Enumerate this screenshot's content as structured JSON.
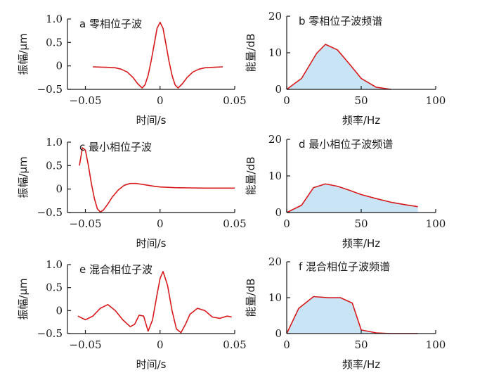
{
  "chart_data": [
    {
      "type": "line",
      "title": "a 零相位子波",
      "xlabel": "时间/s",
      "ylabel": "振幅/μm",
      "xlim": [
        -0.062,
        0.05
      ],
      "ylim": [
        -0.5,
        1.0
      ],
      "xticks": [
        -0.05,
        0,
        0.05
      ],
      "xtick_labels": [
        "−0.05",
        "0",
        "0.05"
      ],
      "yticks": [
        1.0,
        0.5,
        0,
        -0.5
      ],
      "ytick_labels": [
        "1.0",
        "0.5",
        "0",
        "−0.5"
      ],
      "series": [
        {
          "color": "#d7191c",
          "x": [
            -0.045,
            -0.035,
            -0.03,
            -0.026,
            -0.022,
            -0.018,
            -0.015,
            -0.012,
            -0.01,
            -0.008,
            -0.006,
            -0.004,
            -0.002,
            0,
            0.002,
            0.004,
            0.006,
            0.008,
            0.01,
            0.012,
            0.015,
            0.018,
            0.022,
            0.026,
            0.03,
            0.035,
            0.042
          ],
          "y": [
            -0.02,
            -0.03,
            -0.04,
            -0.07,
            -0.13,
            -0.25,
            -0.38,
            -0.47,
            -0.4,
            -0.2,
            0.1,
            0.45,
            0.8,
            0.93,
            0.8,
            0.45,
            0.1,
            -0.2,
            -0.4,
            -0.47,
            -0.38,
            -0.25,
            -0.13,
            -0.07,
            -0.04,
            -0.03,
            -0.02
          ]
        }
      ]
    },
    {
      "type": "area",
      "title": "b 零相位子波频谱",
      "xlabel": "频率/Hz",
      "ylabel": "能量/dB",
      "xlim": [
        0,
        100
      ],
      "ylim": [
        0,
        20
      ],
      "xticks": [
        0,
        50,
        100
      ],
      "xtick_labels": [
        "0",
        "50",
        "100"
      ],
      "yticks": [
        0,
        10,
        20
      ],
      "ytick_labels": [
        "0",
        "10",
        "20"
      ],
      "fill_color": "#c9e4f5",
      "series": [
        {
          "color": "#d7191c",
          "x": [
            0,
            10,
            20,
            26,
            34,
            42,
            50,
            60,
            70
          ],
          "y": [
            0,
            3,
            9.8,
            12.3,
            10.8,
            7,
            3,
            0.6,
            0
          ]
        }
      ]
    },
    {
      "type": "line",
      "title": "c 最小相位子波",
      "xlabel": "时间/s",
      "ylabel": "振幅/μm",
      "xlim": [
        -0.062,
        0.05
      ],
      "ylim": [
        -0.5,
        1.0
      ],
      "xticks": [
        -0.05,
        0,
        0.05
      ],
      "xtick_labels": [
        "−0.05",
        "0",
        "0.05"
      ],
      "yticks": [
        1.0,
        0.5,
        0,
        -0.5
      ],
      "ytick_labels": [
        "1.0",
        "0.5",
        "0",
        "−0.5"
      ],
      "series": [
        {
          "color": "#d7191c",
          "x": [
            -0.054,
            -0.052,
            -0.05,
            -0.048,
            -0.046,
            -0.044,
            -0.042,
            -0.04,
            -0.038,
            -0.035,
            -0.032,
            -0.028,
            -0.024,
            -0.02,
            -0.016,
            -0.012,
            -0.008,
            -0.004,
            0,
            0.01,
            0.02,
            0.03,
            0.04,
            0.05
          ],
          "y": [
            0.5,
            0.88,
            0.83,
            0.5,
            0.12,
            -0.2,
            -0.42,
            -0.49,
            -0.45,
            -0.32,
            -0.17,
            -0.02,
            0.08,
            0.12,
            0.12,
            0.1,
            0.08,
            0.06,
            0.045,
            0.03,
            0.025,
            0.02,
            0.02,
            0.02
          ]
        }
      ]
    },
    {
      "type": "area",
      "title": "d 最小相位子波频谱",
      "xlabel": "频率/Hz",
      "ylabel": "能量/dB",
      "xlim": [
        0,
        100
      ],
      "ylim": [
        0,
        20
      ],
      "xticks": [
        0,
        50,
        100
      ],
      "xtick_labels": [
        "0",
        "50",
        "100"
      ],
      "yticks": [
        0,
        10,
        20
      ],
      "ytick_labels": [
        "0",
        "10",
        "20"
      ],
      "fill_color": "#c9e4f5",
      "series": [
        {
          "color": "#d7191c",
          "x": [
            0,
            10,
            18,
            26,
            34,
            42,
            50,
            60,
            70,
            80,
            88
          ],
          "y": [
            0,
            2,
            6.8,
            7.8,
            7.2,
            6.1,
            4.9,
            3.8,
            2.8,
            2.1,
            1.6
          ]
        }
      ]
    },
    {
      "type": "line",
      "title": "e 混合相位子波",
      "xlabel": "时间/s",
      "ylabel": "振幅/μm",
      "xlim": [
        -0.062,
        0.05
      ],
      "ylim": [
        -0.5,
        1.0
      ],
      "xticks": [
        -0.05,
        0,
        0.05
      ],
      "xtick_labels": [
        "−0.05",
        "0",
        "0.05"
      ],
      "yticks": [
        1.0,
        0.5,
        0,
        -0.5
      ],
      "ytick_labels": [
        "1.0",
        "0.5",
        "0",
        "−0.5"
      ],
      "series": [
        {
          "color": "#d7191c",
          "x": [
            -0.055,
            -0.05,
            -0.045,
            -0.04,
            -0.035,
            -0.03,
            -0.025,
            -0.02,
            -0.017,
            -0.014,
            -0.011,
            -0.008,
            -0.005,
            -0.002,
            0,
            0.002,
            0.005,
            0.008,
            0.011,
            0.014,
            0.017,
            0.02,
            0.025,
            0.03,
            0.035,
            0.04,
            0.045,
            0.048
          ],
          "y": [
            -0.12,
            -0.2,
            -0.12,
            0.05,
            0.13,
            0,
            -0.2,
            -0.35,
            -0.3,
            -0.1,
            -0.12,
            -0.45,
            -0.2,
            0.35,
            0.7,
            0.85,
            0.55,
            0,
            -0.4,
            -0.48,
            -0.3,
            -0.08,
            0.05,
            0,
            -0.14,
            -0.17,
            -0.12,
            -0.14
          ]
        }
      ]
    },
    {
      "type": "area",
      "title": "f 混合相位子波频谱",
      "xlabel": "频率/Hz",
      "ylabel": "能量/dB",
      "xlim": [
        0,
        100
      ],
      "ylim": [
        0,
        20
      ],
      "xticks": [
        0,
        50,
        100
      ],
      "xtick_labels": [
        "0",
        "50",
        "100"
      ],
      "yticks": [
        0,
        10,
        20
      ],
      "ytick_labels": [
        "0",
        "10",
        "20"
      ],
      "fill_color": "#c9e4f5",
      "series": [
        {
          "color": "#d7191c",
          "x": [
            0,
            8,
            18,
            28,
            36,
            44,
            50,
            60,
            70,
            80,
            88
          ],
          "y": [
            0,
            7,
            10.3,
            10,
            10,
            8.5,
            1,
            0.2,
            0,
            0,
            0
          ]
        }
      ]
    }
  ]
}
